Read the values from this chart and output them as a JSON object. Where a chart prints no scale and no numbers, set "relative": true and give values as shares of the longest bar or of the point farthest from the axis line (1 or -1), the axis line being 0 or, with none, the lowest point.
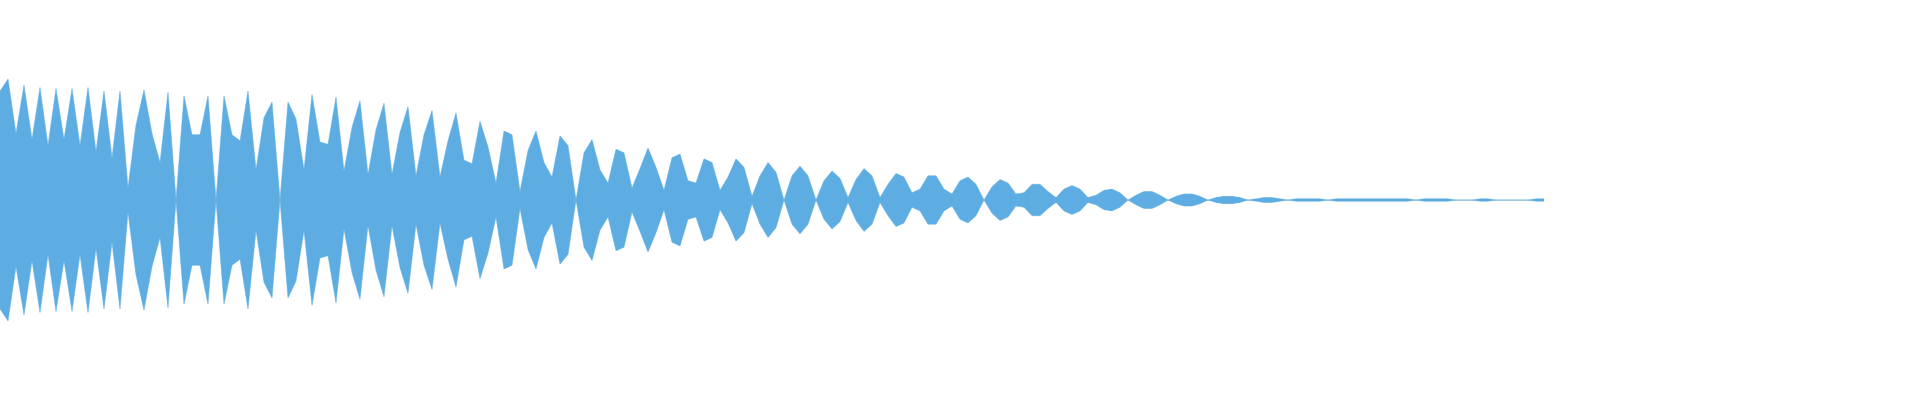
{
  "chart_data": {
    "type": "area",
    "relative": true,
    "categories": [
      null,
      null,
      null,
      null,
      null,
      null,
      null,
      null,
      null,
      null,
      null,
      null,
      null,
      null,
      null,
      null,
      null,
      null,
      null,
      null,
      null,
      null,
      null,
      null,
      null,
      null,
      null,
      null,
      null,
      null,
      null,
      null,
      null,
      null,
      null,
      null,
      null,
      null,
      null,
      null,
      null,
      null,
      null,
      null,
      null,
      null,
      null,
      null,
      null,
      null,
      null,
      null,
      null,
      null,
      null,
      null,
      null,
      null,
      null,
      null,
      null,
      null,
      null,
      null,
      null,
      null,
      null,
      null,
      null,
      null,
      null,
      null,
      null,
      null,
      null,
      null,
      null,
      null,
      null,
      null,
      null,
      null,
      null,
      null,
      null,
      null,
      null,
      null,
      null,
      null,
      null,
      null,
      null,
      null,
      null,
      null,
      null,
      null,
      null,
      null,
      null,
      null,
      null,
      null,
      null,
      null,
      null,
      null,
      null,
      null,
      null,
      null,
      null,
      null,
      null,
      null,
      null,
      null,
      null,
      null,
      null,
      null,
      null,
      null,
      null,
      null,
      null,
      null,
      null,
      null,
      null,
      null,
      null,
      null,
      null,
      null,
      null,
      null,
      null,
      null,
      null,
      null,
      null,
      null,
      null,
      null,
      null,
      null,
      null,
      null,
      null,
      null,
      null,
      null,
      null,
      null,
      null,
      null,
      null,
      null,
      null,
      null,
      null,
      null,
      null,
      null,
      null,
      null,
      null,
      null,
      null,
      null,
      null,
      null,
      null,
      null,
      null,
      null,
      null,
      null,
      null,
      null,
      null,
      null,
      null,
      null,
      null,
      null,
      null,
      null,
      null,
      null,
      null,
      null
    ],
    "series": [
      {
        "color": "#5dade2",
        "values": [
          0.9,
          1.0,
          0.55,
          0.95,
          0.5,
          0.93,
          0.45,
          0.92,
          0.5,
          0.92,
          0.45,
          0.93,
          0.4,
          0.9,
          0.35,
          0.9,
          0.1,
          0.62,
          0.91,
          0.55,
          0.31,
          0.89,
          0,
          0.86,
          0.54,
          0.54,
          0.86,
          0,
          0.86,
          0.54,
          0.49,
          0.9,
          0.25,
          0.68,
          0.81,
          0,
          0.81,
          0.67,
          0.25,
          0.87,
          0.48,
          0.46,
          0.85,
          0.24,
          0.6,
          0.82,
          0.21,
          0.58,
          0.8,
          0.21,
          0.56,
          0.77,
          0.2,
          0.54,
          0.74,
          0.19,
          0.49,
          0.72,
          0.33,
          0.3,
          0.65,
          0.44,
          0.14,
          0.57,
          0.54,
          0.07,
          0.41,
          0.57,
          0.31,
          0.19,
          0.53,
          0.45,
          0,
          0.39,
          0.5,
          0.25,
          0.14,
          0.42,
          0.39,
          0.1,
          0.26,
          0.43,
          0.27,
          0.08,
          0.35,
          0.38,
          0.16,
          0.14,
          0.34,
          0.31,
          0.08,
          0.19,
          0.34,
          0.27,
          0.03,
          0.2,
          0.31,
          0.23,
          0,
          0.2,
          0.28,
          0.2,
          0,
          0.16,
          0.24,
          0.18,
          0.02,
          0.17,
          0.26,
          0.2,
          0.02,
          0.13,
          0.22,
          0.19,
          0.06,
          0.09,
          0.2,
          0.2,
          0.09,
          0.05,
          0.16,
          0.19,
          0.13,
          0,
          0.11,
          0.17,
          0.14,
          0.05,
          0.06,
          0.13,
          0.13,
          0.07,
          0.02,
          0.09,
          0.12,
          0.09,
          0.02,
          0.04,
          0.08,
          0.09,
          0.06,
          0,
          0.04,
          0.07,
          0.07,
          0.04,
          0,
          0.03,
          0.05,
          0.05,
          0.03,
          0,
          0.02,
          0.03,
          0.03,
          0.02,
          0,
          0.01,
          0.02,
          0.02,
          0.01,
          0,
          0.01,
          0.01,
          0.01,
          0.01,
          0,
          0.01,
          0.01,
          0.01,
          0.01,
          0.01,
          0.01,
          0.01,
          0.01,
          0.01,
          0.01,
          0,
          0.01,
          0.01,
          0.01,
          0.01,
          0,
          0,
          0,
          0.01,
          0.01,
          0,
          0,
          0,
          0,
          0,
          0.01,
          0.01
        ]
      },
      {
        "color": "#5dade2",
        "values": [
          -0.9,
          -1.0,
          -0.55,
          -0.95,
          -0.5,
          -0.93,
          -0.45,
          -0.92,
          -0.5,
          -0.92,
          -0.45,
          -0.93,
          -0.4,
          -0.9,
          -0.35,
          -0.9,
          -0.1,
          -0.62,
          -0.91,
          -0.55,
          -0.31,
          -0.89,
          0,
          -0.86,
          -0.54,
          -0.54,
          -0.86,
          0,
          -0.86,
          -0.54,
          -0.49,
          -0.9,
          -0.25,
          -0.68,
          -0.81,
          0,
          -0.81,
          -0.67,
          -0.25,
          -0.87,
          -0.48,
          -0.46,
          -0.85,
          -0.24,
          -0.6,
          -0.82,
          -0.21,
          -0.58,
          -0.8,
          -0.21,
          -0.56,
          -0.77,
          -0.2,
          -0.54,
          -0.74,
          -0.19,
          -0.49,
          -0.72,
          -0.33,
          -0.3,
          -0.65,
          -0.44,
          -0.14,
          -0.57,
          -0.54,
          -0.07,
          -0.41,
          -0.57,
          -0.31,
          -0.19,
          -0.53,
          -0.45,
          0,
          -0.39,
          -0.5,
          -0.25,
          -0.14,
          -0.42,
          -0.39,
          -0.1,
          -0.26,
          -0.43,
          -0.27,
          -0.08,
          -0.35,
          -0.38,
          -0.16,
          -0.14,
          -0.34,
          -0.31,
          -0.08,
          -0.19,
          -0.34,
          -0.27,
          -0.03,
          -0.2,
          -0.31,
          -0.23,
          0,
          -0.2,
          -0.28,
          -0.2,
          0,
          -0.16,
          -0.24,
          -0.18,
          -0.02,
          -0.17,
          -0.26,
          -0.2,
          -0.02,
          -0.13,
          -0.22,
          -0.19,
          -0.06,
          -0.09,
          -0.2,
          -0.2,
          -0.09,
          -0.05,
          -0.16,
          -0.19,
          -0.13,
          0,
          -0.11,
          -0.17,
          -0.14,
          -0.05,
          -0.06,
          -0.13,
          -0.13,
          -0.07,
          -0.02,
          -0.09,
          -0.12,
          -0.09,
          -0.02,
          -0.04,
          -0.08,
          -0.09,
          -0.06,
          0,
          -0.04,
          -0.07,
          -0.07,
          -0.04,
          0,
          -0.03,
          -0.05,
          -0.05,
          -0.03,
          0,
          -0.02,
          -0.03,
          -0.03,
          -0.02,
          0,
          -0.01,
          -0.02,
          -0.02,
          -0.01,
          0,
          -0.01,
          -0.01,
          -0.01,
          -0.01,
          0,
          -0.01,
          -0.01,
          -0.01,
          -0.01,
          -0.01,
          -0.01,
          -0.01,
          -0.01,
          -0.01,
          -0.01,
          0,
          -0.01,
          -0.01,
          -0.01,
          -0.01,
          0,
          0,
          0,
          -0.01,
          -0.01,
          0,
          0,
          0,
          0,
          0,
          -0.01,
          -0.01
        ]
      }
    ]
  }
}
